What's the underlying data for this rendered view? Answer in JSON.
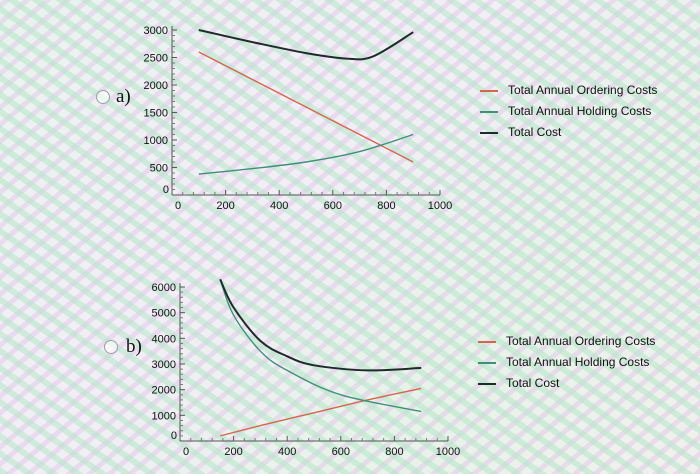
{
  "options": [
    {
      "label": "a)"
    },
    {
      "label": "b)"
    }
  ],
  "legend": {
    "items": [
      {
        "name": "Total Annual Ordering Costs",
        "color": "#d4664d"
      },
      {
        "name": "Total Annual Holding Costs",
        "color": "#3f8f7a"
      },
      {
        "name": "Total Cost",
        "color": "#1f2a2a"
      }
    ]
  },
  "chart_data": [
    {
      "type": "line",
      "xlim": [
        0,
        1000
      ],
      "ylim": [
        0,
        3000
      ],
      "xticks": [
        "0",
        "200",
        "400",
        "600",
        "800",
        "1000"
      ],
      "yticks": [
        "0",
        "500",
        "1000",
        "1500",
        "2000",
        "2500",
        "3000"
      ],
      "series": [
        {
          "name": "Total Annual Ordering Costs",
          "x": [
            100,
            300,
            500,
            700,
            900
          ],
          "y": [
            2600,
            2100,
            1600,
            1100,
            600
          ]
        },
        {
          "name": "Total Annual Holding Costs",
          "x": [
            100,
            300,
            500,
            700,
            900
          ],
          "y": [
            380,
            480,
            600,
            790,
            1100
          ]
        },
        {
          "name": "Total Cost",
          "x": [
            100,
            300,
            500,
            650,
            750,
            900
          ],
          "y": [
            3000,
            2780,
            2580,
            2480,
            2520,
            2960
          ]
        }
      ]
    },
    {
      "type": "line",
      "xlim": [
        0,
        1000
      ],
      "ylim": [
        0,
        6000
      ],
      "xticks": [
        "0",
        "200",
        "400",
        "600",
        "800",
        "1000"
      ],
      "yticks": [
        "0",
        "1000",
        "2000",
        "3000",
        "4000",
        "5000",
        "6000"
      ],
      "series": [
        {
          "name": "Total Annual Ordering Costs",
          "x": [
            150,
            300,
            500,
            700,
            900
          ],
          "y": [
            200,
            600,
            1100,
            1600,
            2050
          ]
        },
        {
          "name": "Total Annual Holding Costs",
          "x": [
            150,
            200,
            300,
            400,
            600,
            900
          ],
          "y": [
            6300,
            4900,
            3500,
            2750,
            1800,
            1150
          ]
        },
        {
          "name": "Total Cost",
          "x": [
            150,
            200,
            300,
            400,
            500,
            700,
            900
          ],
          "y": [
            6300,
            5200,
            3900,
            3300,
            2950,
            2750,
            2850
          ]
        }
      ]
    }
  ]
}
